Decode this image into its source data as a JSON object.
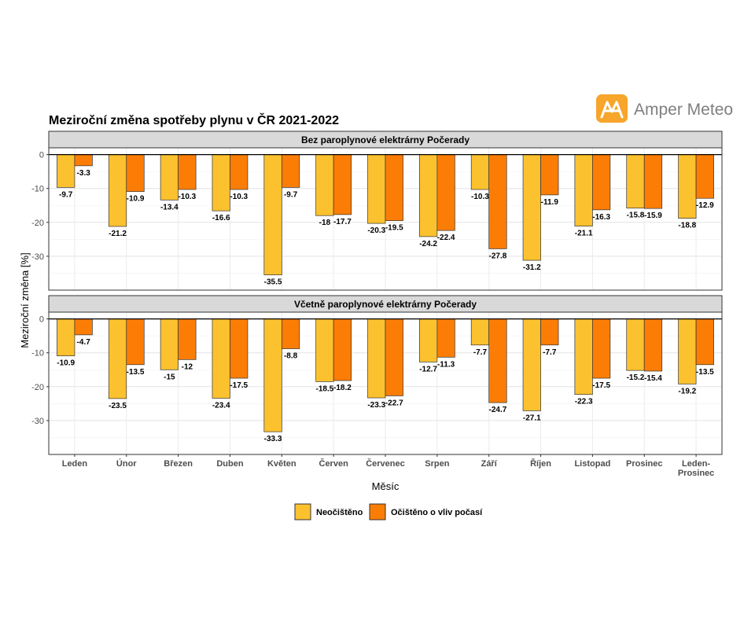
{
  "logo": {
    "text": "Amper Meteo",
    "color": "#f7a52b"
  },
  "chart_data": {
    "type": "bar",
    "title": "Meziroční změna spotřeby plynu v ČR 2021-2022",
    "xlabel": "Měsíc",
    "ylabel": "Meziroční změna [%]",
    "ylim": [
      -40,
      2
    ],
    "yticks": [
      0,
      -10,
      -20,
      -30
    ],
    "grid": true,
    "legend_position": "bottom",
    "categories": [
      "Leden",
      "Únor",
      "Březen",
      "Duben",
      "Květen",
      "Červen",
      "Červenec",
      "Srpen",
      "Září",
      "Říjen",
      "Listopad",
      "Prosinec",
      "Leden-Prosinec"
    ],
    "category_tick_lines": [
      [
        "Leden"
      ],
      [
        "Únor"
      ],
      [
        "Březen"
      ],
      [
        "Duben"
      ],
      [
        "Květen"
      ],
      [
        "Červen"
      ],
      [
        "Červenec"
      ],
      [
        "Srpen"
      ],
      [
        "Září"
      ],
      [
        "Říjen"
      ],
      [
        "Listopad"
      ],
      [
        "Prosinec"
      ],
      [
        "Leden-",
        "Prosinec"
      ]
    ],
    "series_meta": [
      {
        "name": "Neočištěno",
        "color": "#fcc12e"
      },
      {
        "name": "Očištěno o vliv počasí",
        "color": "#fb7d06"
      }
    ],
    "panels": [
      {
        "label": "Bez paroplynové elektrárny Počerady",
        "series": [
          {
            "name": "Neočištěno",
            "values": [
              -9.7,
              -21.2,
              -13.4,
              -16.6,
              -35.5,
              -18,
              -20.3,
              -24.2,
              -10.3,
              -31.2,
              -21.1,
              -15.8,
              -18.8
            ]
          },
          {
            "name": "Očištěno o vliv počasí",
            "values": [
              -3.3,
              -10.9,
              -10.3,
              -10.3,
              -9.7,
              -17.7,
              -19.5,
              -22.4,
              -27.8,
              -11.9,
              -16.3,
              -15.9,
              -12.9
            ]
          }
        ]
      },
      {
        "label": "Včetně paroplynové elektrárny Počerady",
        "series": [
          {
            "name": "Neočištěno",
            "values": [
              -10.9,
              -23.5,
              -15,
              -23.4,
              -33.3,
              -18.5,
              -23.3,
              -12.7,
              -7.7,
              -27.1,
              -22.3,
              -15.2,
              -19.2
            ]
          },
          {
            "name": "Očištěno o vliv počasí",
            "values": [
              -4.7,
              -13.5,
              -12,
              -17.5,
              -8.8,
              -18.2,
              -22.7,
              -11.3,
              -24.7,
              -7.7,
              -17.5,
              -15.4,
              -13.5
            ]
          }
        ]
      }
    ]
  }
}
